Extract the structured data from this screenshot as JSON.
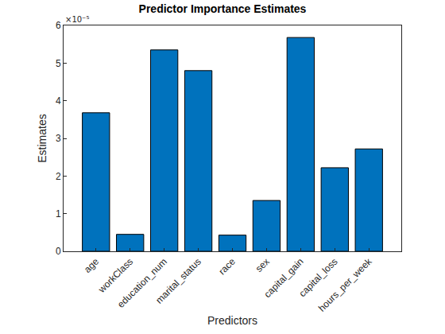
{
  "chart_data": {
    "type": "bar",
    "title": "Predictor Importance Estimates",
    "x_label": "Predictors",
    "y_label": "Estimates",
    "categories": [
      "age",
      "workClass",
      "education_num",
      "marital_status",
      "race",
      "sex",
      "capital_gain",
      "capital_loss",
      "hours_per_week"
    ],
    "values": [
      3.68,
      0.45,
      5.35,
      4.8,
      0.43,
      1.35,
      5.68,
      2.22,
      2.72
    ],
    "color": "#0072bd",
    "ylim": [
      0,
      6
    ],
    "yticks": [
      0,
      1,
      2,
      3,
      4,
      5,
      6
    ],
    "grid": false,
    "annotations": [
      "×10⁻⁵"
    ]
  }
}
